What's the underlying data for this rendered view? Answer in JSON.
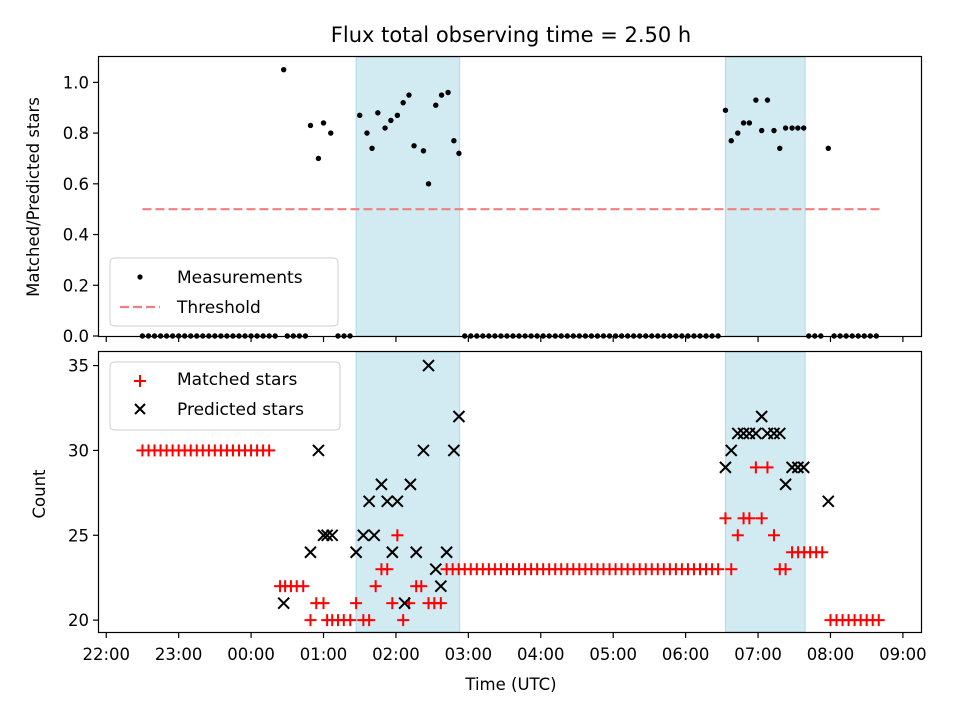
{
  "chart_data": [
    {
      "type": "scatter",
      "title": "Flux total observing time = 2.50 h",
      "xlabel": "",
      "ylabel": "Matched/Predicted stars",
      "ylim": [
        0,
        1.1
      ],
      "yticks": [
        "0.0",
        "0.2",
        "0.4",
        "0.6",
        "0.8",
        "1.0"
      ],
      "xlim_hours": [
        -2.1,
        9.25
      ],
      "xticks": [
        {
          "h": -2,
          "label": ""
        },
        {
          "h": -1,
          "label": ""
        },
        {
          "h": 0,
          "label": ""
        },
        {
          "h": 1,
          "label": ""
        },
        {
          "h": 2,
          "label": ""
        },
        {
          "h": 3,
          "label": ""
        },
        {
          "h": 4,
          "label": ""
        },
        {
          "h": 5,
          "label": ""
        },
        {
          "h": 6,
          "label": ""
        },
        {
          "h": 7,
          "label": ""
        },
        {
          "h": 8,
          "label": ""
        },
        {
          "h": 9,
          "label": ""
        }
      ],
      "legend_position": "lower-left",
      "legend": [
        {
          "label": "Measurements",
          "marker": "dot",
          "color": "#000000"
        },
        {
          "label": "Threshold",
          "marker": "dashed-line",
          "color": "#f08080"
        }
      ],
      "threshold": {
        "value": 0.5,
        "x_start": -1.5,
        "x_end": 8.7,
        "color": "#f08080"
      },
      "shaded_intervals": [
        [
          1.45,
          2.88
        ],
        [
          6.55,
          7.65
        ]
      ],
      "shade_color": "#add8e6",
      "series": [
        {
          "name": "Measurements",
          "color": "#000000",
          "points": [
            [
              0.45,
              1.05
            ],
            [
              0.82,
              0.83
            ],
            [
              0.93,
              0.7
            ],
            [
              1.0,
              0.84
            ],
            [
              1.1,
              0.8
            ],
            [
              1.5,
              0.87
            ],
            [
              1.6,
              0.8
            ],
            [
              1.67,
              0.74
            ],
            [
              1.75,
              0.88
            ],
            [
              1.85,
              0.82
            ],
            [
              1.93,
              0.85
            ],
            [
              2.02,
              0.87
            ],
            [
              2.1,
              0.92
            ],
            [
              2.18,
              0.95
            ],
            [
              2.25,
              0.75
            ],
            [
              2.38,
              0.73
            ],
            [
              2.45,
              0.6
            ],
            [
              2.55,
              0.91
            ],
            [
              2.63,
              0.95
            ],
            [
              2.72,
              0.96
            ],
            [
              2.8,
              0.77
            ],
            [
              2.87,
              0.72
            ],
            [
              6.55,
              0.89
            ],
            [
              6.63,
              0.77
            ],
            [
              6.72,
              0.8
            ],
            [
              6.8,
              0.84
            ],
            [
              6.88,
              0.84
            ],
            [
              6.97,
              0.93
            ],
            [
              7.05,
              0.81
            ],
            [
              7.13,
              0.93
            ],
            [
              7.22,
              0.81
            ],
            [
              7.3,
              0.74
            ],
            [
              7.38,
              0.82
            ],
            [
              7.47,
              0.82
            ],
            [
              7.55,
              0.82
            ],
            [
              7.63,
              0.82
            ],
            [
              7.97,
              0.74
            ]
          ],
          "zero_ranges": [
            [
              -1.5,
              0.4,
              0.0833
            ],
            [
              0.5,
              0.75,
              0.0833
            ],
            [
              1.2,
              1.4,
              0.0833
            ],
            [
              2.95,
              6.5,
              0.0833
            ],
            [
              7.7,
              7.9,
              0.0833
            ],
            [
              8.05,
              8.7,
              0.0833
            ]
          ]
        }
      ]
    },
    {
      "type": "scatter",
      "title": "",
      "xlabel": "Time (UTC)",
      "ylabel": "Count",
      "ylim": [
        19.3,
        35.8
      ],
      "yticks": [
        "20",
        "25",
        "30",
        "35"
      ],
      "xlim_hours": [
        -2.1,
        9.25
      ],
      "xticks": [
        {
          "h": -2,
          "label": "22:00"
        },
        {
          "h": -1,
          "label": "23:00"
        },
        {
          "h": 0,
          "label": "00:00"
        },
        {
          "h": 1,
          "label": "01:00"
        },
        {
          "h": 2,
          "label": "02:00"
        },
        {
          "h": 3,
          "label": "03:00"
        },
        {
          "h": 4,
          "label": "04:00"
        },
        {
          "h": 5,
          "label": "05:00"
        },
        {
          "h": 6,
          "label": "06:00"
        },
        {
          "h": 7,
          "label": "07:00"
        },
        {
          "h": 8,
          "label": "08:00"
        },
        {
          "h": 9,
          "label": "09:00"
        }
      ],
      "legend_position": "upper-left",
      "legend": [
        {
          "label": "Matched stars",
          "marker": "plus",
          "color": "#ff0000"
        },
        {
          "label": "Predicted stars",
          "marker": "x",
          "color": "#000000"
        }
      ],
      "shaded_intervals": [
        [
          1.45,
          2.88
        ],
        [
          6.55,
          7.65
        ]
      ],
      "shade_color": "#add8e6",
      "series": [
        {
          "name": "Matched stars",
          "marker": "plus",
          "color": "#ff0000",
          "points": [
            [
              0.4,
              22
            ],
            [
              0.47,
              22
            ],
            [
              0.55,
              22
            ],
            [
              0.63,
              22
            ],
            [
              0.72,
              22
            ],
            [
              0.82,
              20
            ],
            [
              0.9,
              21
            ],
            [
              1.0,
              21
            ],
            [
              1.05,
              20
            ],
            [
              1.12,
              20
            ],
            [
              1.2,
              20
            ],
            [
              1.28,
              20
            ],
            [
              1.37,
              20
            ],
            [
              1.45,
              21
            ],
            [
              1.55,
              20
            ],
            [
              1.63,
              20
            ],
            [
              1.72,
              22
            ],
            [
              1.8,
              23
            ],
            [
              1.88,
              23
            ],
            [
              1.95,
              21
            ],
            [
              2.02,
              25
            ],
            [
              2.1,
              20
            ],
            [
              2.18,
              21
            ],
            [
              2.28,
              22
            ],
            [
              2.35,
              22
            ],
            [
              2.45,
              21
            ],
            [
              2.53,
              21
            ],
            [
              2.62,
              21
            ],
            [
              6.55,
              26
            ],
            [
              6.63,
              23
            ],
            [
              6.72,
              25
            ],
            [
              6.8,
              26
            ],
            [
              6.88,
              26
            ],
            [
              6.97,
              29
            ],
            [
              7.05,
              26
            ],
            [
              7.13,
              29
            ],
            [
              7.22,
              25
            ],
            [
              7.3,
              23
            ],
            [
              7.38,
              23
            ]
          ],
          "flat_ranges": [
            [
              -1.5,
              0.3,
              0.0833,
              30
            ],
            [
              2.7,
              6.5,
              0.0833,
              23
            ],
            [
              7.47,
              7.9,
              0.0833,
              24
            ],
            [
              8.0,
              8.7,
              0.0833,
              20
            ]
          ]
        },
        {
          "name": "Predicted stars",
          "marker": "x",
          "color": "#000000",
          "points": [
            [
              0.45,
              21
            ],
            [
              0.82,
              24
            ],
            [
              0.93,
              30
            ],
            [
              1.0,
              25
            ],
            [
              1.05,
              25
            ],
            [
              1.12,
              25
            ],
            [
              1.45,
              24
            ],
            [
              1.55,
              25
            ],
            [
              1.63,
              27
            ],
            [
              1.7,
              25
            ],
            [
              1.8,
              28
            ],
            [
              1.88,
              27
            ],
            [
              1.95,
              24
            ],
            [
              2.02,
              27
            ],
            [
              2.12,
              21
            ],
            [
              2.2,
              28
            ],
            [
              2.28,
              24
            ],
            [
              2.38,
              30
            ],
            [
              2.45,
              35
            ],
            [
              2.55,
              23
            ],
            [
              2.62,
              22
            ],
            [
              2.7,
              24
            ],
            [
              2.8,
              30
            ],
            [
              2.87,
              32
            ],
            [
              6.55,
              29
            ],
            [
              6.63,
              30
            ],
            [
              6.72,
              31
            ],
            [
              6.8,
              31
            ],
            [
              6.88,
              31
            ],
            [
              6.97,
              31
            ],
            [
              7.05,
              32
            ],
            [
              7.13,
              31
            ],
            [
              7.22,
              31
            ],
            [
              7.3,
              31
            ],
            [
              7.38,
              28
            ],
            [
              7.47,
              29
            ],
            [
              7.55,
              29
            ],
            [
              7.63,
              29
            ],
            [
              7.97,
              27
            ]
          ]
        }
      ]
    }
  ]
}
